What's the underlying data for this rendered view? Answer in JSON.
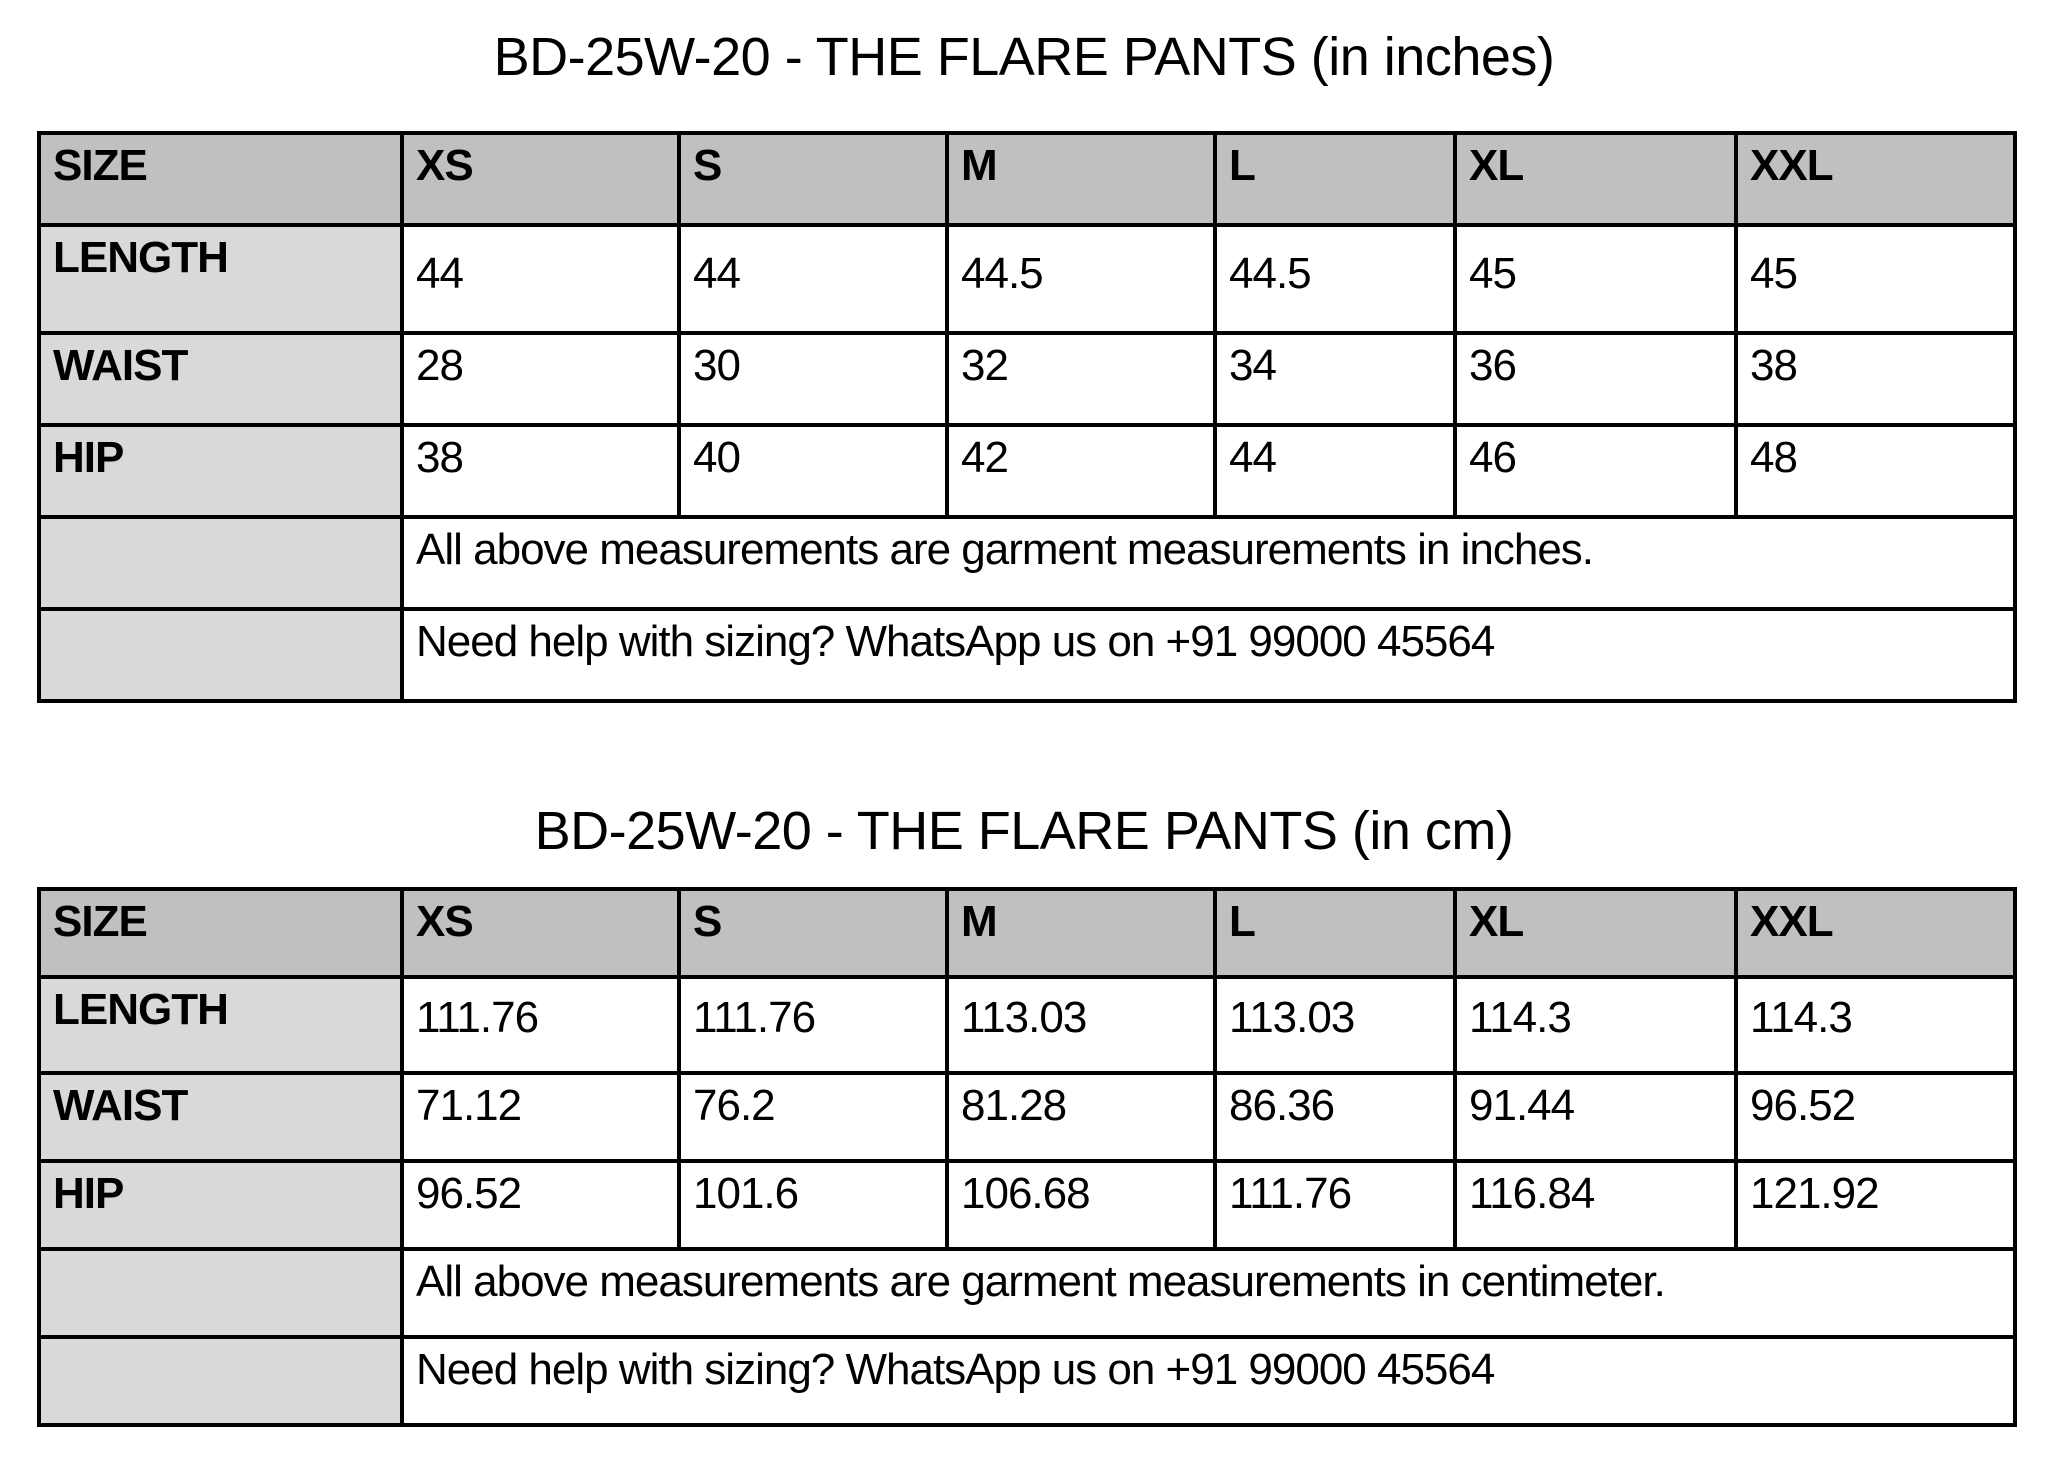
{
  "sizes": [
    "XS",
    "S",
    "M",
    "L",
    "XL",
    "XXL"
  ],
  "inches": {
    "title": "BD-25W-20 - THE FLARE PANTS (in inches)",
    "header_label": "SIZE",
    "rows": [
      {
        "label": "LENGTH",
        "values": [
          "44",
          "44",
          "44.5",
          "44.5",
          "45",
          "45"
        ]
      },
      {
        "label": "WAIST",
        "values": [
          "28",
          "30",
          "32",
          "34",
          "36",
          "38"
        ]
      },
      {
        "label": "HIP",
        "values": [
          "38",
          "40",
          "42",
          "44",
          "46",
          "48"
        ]
      }
    ],
    "note": "All above measurements are garment measurements in inches.",
    "help": "Need help with sizing? WhatsApp us on +91 99000 45564"
  },
  "cm": {
    "title": "BD-25W-20 - THE FLARE PANTS (in cm)",
    "header_label": "SIZE",
    "rows": [
      {
        "label": "LENGTH",
        "values": [
          "111.76",
          "111.76",
          "113.03",
          "113.03",
          "114.3",
          "114.3"
        ]
      },
      {
        "label": "WAIST",
        "values": [
          "71.12",
          "76.2",
          "81.28",
          "86.36",
          "91.44",
          "96.52"
        ]
      },
      {
        "label": "HIP",
        "values": [
          "96.52",
          "101.6",
          "106.68",
          "111.76",
          "116.84",
          "121.92"
        ]
      }
    ],
    "note": "All above measurements are garment measurements in centimeter.",
    "help": "Need help with sizing? WhatsApp us on +91 99000 45564"
  },
  "colors": {
    "header_fill": "#bfc1c0",
    "label_fill": "#d9d9d9",
    "border": "#000000"
  }
}
